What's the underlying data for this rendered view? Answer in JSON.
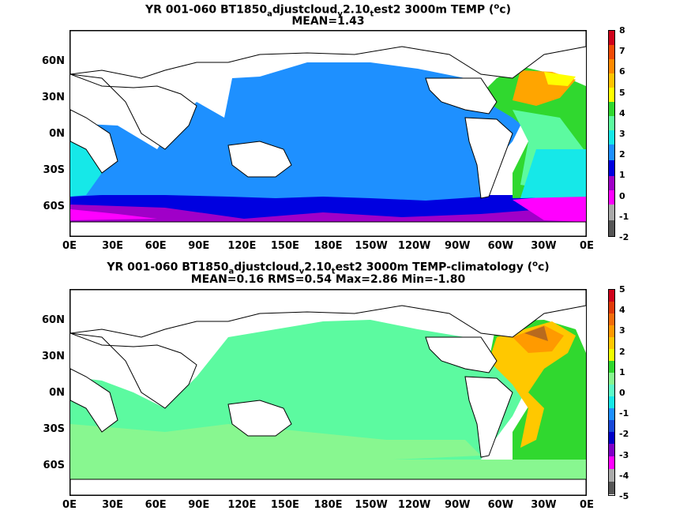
{
  "panels": [
    {
      "title_line1": {
        "pre": "YR 001-060 BT1850",
        "s1": "a",
        "m1": "djustcloud",
        "s2": "v",
        "m2": "2.10",
        "s3": "t",
        "post": "est2 3000m TEMP (",
        "sup": "o",
        "end": "c)"
      },
      "title_line2": "MEAN=1.43",
      "colorbar": {
        "labels": [
          "8",
          "7",
          "6",
          "5",
          "4",
          "3",
          "2",
          "1",
          "0",
          "-1",
          "-2"
        ],
        "colors": [
          "#d0021b",
          "#f14b06",
          "#ff8a00",
          "#ffc400",
          "#ffff00",
          "#30d82f",
          "#5cfaa0",
          "#16e8e8",
          "#1e90ff",
          "#0000e0",
          "#a000c8",
          "#ff00ff",
          "#aaaaaa",
          "#555555"
        ]
      }
    },
    {
      "title_line1": {
        "pre": "YR 001-060 BT1850",
        "s1": "a",
        "m1": "djustcloud",
        "s2": "v",
        "m2": "2.10",
        "s3": "t",
        "post": "est2 3000m TEMP-climatology (",
        "sup": "o",
        "end": "c)"
      },
      "title_line2": "MEAN=0.16   RMS=0.54   Max=2.86   Min=-1.80",
      "colorbar": {
        "labels": [
          "5",
          "4",
          "3",
          "2",
          "1",
          "0",
          "-1",
          "-2",
          "-3",
          "-4",
          "-5"
        ],
        "colors": [
          "#d0021b",
          "#e03a0a",
          "#f36d0b",
          "#ff9a00",
          "#ffc800",
          "#f0ff00",
          "#30d82f",
          "#88f790",
          "#5cfac8",
          "#16e8e8",
          "#1e90ff",
          "#1848d8",
          "#0000c8",
          "#8000c8",
          "#ff00ff",
          "#aaaaaa",
          "#555555"
        ]
      }
    }
  ],
  "axes": {
    "lat_labels": [
      "60N",
      "30N",
      "0N",
      "30S",
      "60S"
    ],
    "lon_labels": [
      "0E",
      "30E",
      "60E",
      "90E",
      "120E",
      "150E",
      "180E",
      "150W",
      "120W",
      "90W",
      "60W",
      "30W",
      "0E"
    ]
  },
  "colors": {
    "panel1_pacific": "#1e90ff",
    "panel1_atlantic_warm": "#ffa500",
    "panel1_southern": "#0000e0",
    "panel1_magenta": "#ff00ff",
    "panel2_main": "#5cfaa0",
    "panel2_light": "#88f790",
    "panel2_atlantic_warm": "#ffc800"
  }
}
